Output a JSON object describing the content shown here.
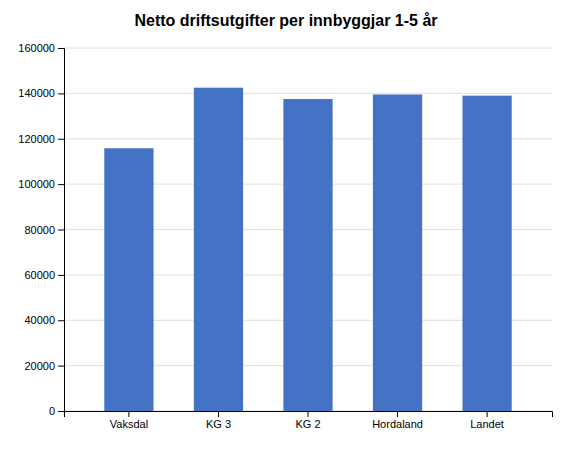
{
  "chart_data": {
    "type": "bar",
    "title": "Netto driftsutgifter per innbyggjar 1-5 år",
    "categories": [
      "Vaksdal",
      "KG 3",
      "KG 2",
      "Hordaland",
      "Landet"
    ],
    "values": [
      115800,
      142500,
      137500,
      139500,
      139000
    ],
    "color": "#4472C4",
    "ylim": [
      0,
      160000
    ],
    "yticks": [
      0,
      20000,
      40000,
      60000,
      80000,
      100000,
      120000,
      140000,
      160000
    ],
    "grid": true
  }
}
